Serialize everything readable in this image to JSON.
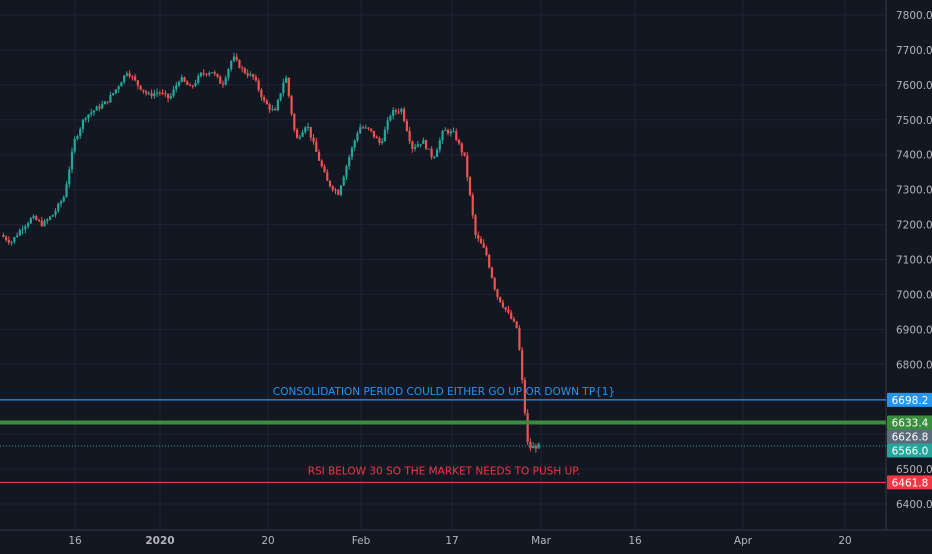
{
  "colors": {
    "background": "#131722",
    "grid": "#1f2433",
    "axis_text": "#b2b5be",
    "up": "#26a69a",
    "down": "#ef5350",
    "blue_line": "#2196f3",
    "green_line": "#388e3c",
    "red_line": "#f23645",
    "last_price": "#5c6b7a"
  },
  "chart_data": {
    "type": "candlestick",
    "y_axis": {
      "range": [
        6340,
        7830
      ],
      "ticks": [
        "7800.0",
        "7700.0",
        "7600.0",
        "7500.0",
        "7400.0",
        "7300.0",
        "7200.0",
        "7100.0",
        "7000.0",
        "6900.0",
        "6800.0",
        "6700.0",
        "6600.0",
        "6500.0",
        "6400.0"
      ]
    },
    "x_axis": {
      "ticks": [
        {
          "label": "16",
          "bold": false
        },
        {
          "label": "2020",
          "bold": true
        },
        {
          "label": "20",
          "bold": false
        },
        {
          "label": "Feb",
          "bold": false
        },
        {
          "label": "17",
          "bold": false
        },
        {
          "label": "Mar",
          "bold": false
        },
        {
          "label": "16",
          "bold": false
        },
        {
          "label": "Apr",
          "bold": false
        },
        {
          "label": "20",
          "bold": false
        }
      ]
    },
    "grid": true,
    "price_path": [
      [
        0,
        7170
      ],
      [
        1,
        7150
      ],
      [
        2,
        7190
      ],
      [
        3,
        7220
      ],
      [
        4,
        7200
      ],
      [
        5,
        7230
      ],
      [
        6,
        7280
      ],
      [
        7,
        7440
      ],
      [
        8,
        7510
      ],
      [
        9,
        7530
      ],
      [
        10,
        7550
      ],
      [
        11,
        7590
      ],
      [
        12,
        7640
      ],
      [
        13,
        7600
      ],
      [
        14,
        7570
      ],
      [
        15,
        7580
      ],
      [
        16,
        7560
      ],
      [
        17,
        7620
      ],
      [
        18,
        7590
      ],
      [
        19,
        7630
      ],
      [
        20,
        7640
      ],
      [
        21,
        7600
      ],
      [
        22,
        7680
      ],
      [
        23,
        7640
      ],
      [
        24,
        7620
      ],
      [
        25,
        7550
      ],
      [
        26,
        7520
      ],
      [
        27,
        7630
      ],
      [
        28,
        7440
      ],
      [
        29,
        7490
      ],
      [
        30,
        7400
      ],
      [
        31,
        7320
      ],
      [
        32,
        7290
      ],
      [
        33,
        7390
      ],
      [
        34,
        7480
      ],
      [
        35,
        7470
      ],
      [
        36,
        7430
      ],
      [
        37,
        7520
      ],
      [
        38,
        7530
      ],
      [
        39,
        7420
      ],
      [
        40,
        7440
      ],
      [
        41,
        7390
      ],
      [
        42,
        7470
      ],
      [
        43,
        7460
      ],
      [
        44,
        7390
      ],
      [
        45,
        7170
      ],
      [
        46,
        7120
      ],
      [
        47,
        7000
      ],
      [
        48,
        6950
      ],
      [
        49,
        6900
      ],
      [
        50,
        6560
      ],
      [
        51,
        6566
      ]
    ],
    "last_price": 6566.0,
    "horizontal_levels": [
      {
        "price": 6698.2,
        "label": "6698.2",
        "color": "#2196f3",
        "line": "solid"
      },
      {
        "price": 6633.4,
        "label": "6633.4",
        "color": "#388e3c",
        "line": "thick"
      },
      {
        "price": 6626.8,
        "label": "6626.8",
        "color": "#5c6b7a",
        "line": "none"
      },
      {
        "price": 6566.0,
        "label": "6566.0",
        "color": "#26a69a",
        "line": "dotted"
      },
      {
        "price": 6461.8,
        "label": "6461.8",
        "color": "#f23645",
        "line": "solid"
      }
    ],
    "annotations": [
      {
        "text": "CONSOLIDATION PERIOD COULD EITHER GO UP OR DOWN TP{1}",
        "price": 6698.2,
        "color": "#2196f3"
      },
      {
        "text": "RSI BELOW 30 SO THE MARKET NEEDS TO PUSH UP.",
        "price": 6461.8,
        "color": "#f23645"
      }
    ]
  }
}
